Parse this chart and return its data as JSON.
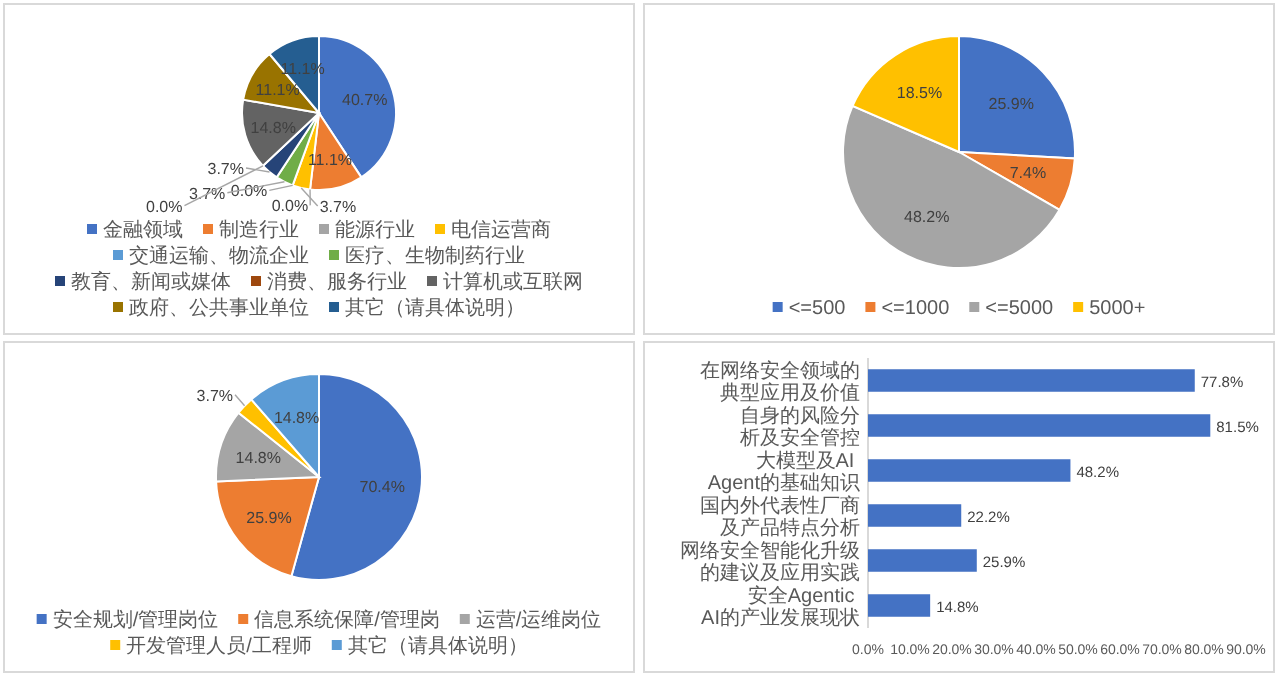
{
  "chart_data": [
    {
      "type": "pie",
      "categories": [
        "金融领域",
        "制造行业",
        "能源行业",
        "电信运营商",
        "交通运输、物流企业",
        "医疗、生物制药行业",
        "教育、新闻或媒体",
        "消费、服务行业",
        "计算机或互联网",
        "政府、公共事业单位",
        "其它（请具体说明）"
      ],
      "values": [
        40.7,
        11.1,
        0.0,
        3.7,
        0.0,
        3.7,
        3.7,
        0.0,
        14.8,
        11.1,
        11.1
      ],
      "value_labels": [
        "40.7%",
        "11.1%",
        "0.0%",
        "3.7%",
        "0.0%",
        "3.7%",
        "3.7%",
        "0.0%",
        "14.8%",
        "11.1%",
        "11.1%"
      ],
      "colors": [
        "#4472c4",
        "#ed7d31",
        "#a5a5a5",
        "#ffc000",
        "#5b9bd5",
        "#70ad47",
        "#264478",
        "#9e480e",
        "#636363",
        "#997300",
        "#255e91"
      ],
      "legend": "bottom"
    },
    {
      "type": "pie",
      "categories": [
        "<=500",
        "<=1000",
        "<=5000",
        "5000+"
      ],
      "values": [
        25.9,
        7.4,
        48.2,
        18.5
      ],
      "value_labels": [
        "25.9%",
        "7.4%",
        "48.2%",
        "18.5%"
      ],
      "colors": [
        "#4472c4",
        "#ed7d31",
        "#a5a5a5",
        "#ffc000"
      ],
      "legend": "bottom"
    },
    {
      "type": "pie",
      "categories": [
        "安全规划/管理岗位",
        "信息系统保障/管理岗",
        "运营/运维岗位",
        "开发管理人员/工程师",
        "其它（请具体说明）"
      ],
      "values": [
        70.4,
        25.9,
        14.8,
        3.7,
        14.8
      ],
      "value_labels": [
        "70.4%",
        "25.9%",
        "14.8%",
        "3.7%",
        "14.8%"
      ],
      "colors": [
        "#4472c4",
        "#ed7d31",
        "#a5a5a5",
        "#ffc000",
        "#5b9bd5"
      ],
      "legend": "bottom"
    },
    {
      "type": "bar",
      "orientation": "horizontal",
      "categories": [
        "在网络安全领域的典型应用及价值",
        "自身的风险分析及安全管控",
        "大模型及AI Agent的基础知识",
        "国内外代表性厂商及产品特点分析",
        "网络安全智能化升级的建议及应用实践",
        "安全Agentic AI的产业发展现状"
      ],
      "values": [
        77.8,
        81.5,
        48.2,
        22.2,
        25.9,
        14.8
      ],
      "value_labels": [
        "77.8%",
        "81.5%",
        "48.2%",
        "22.2%",
        "25.9%",
        "14.8%"
      ],
      "color": "#4472c4",
      "xlim": [
        0,
        90
      ],
      "xticks": [
        {
          "value": 0,
          "label": "0.0%"
        },
        {
          "value": 10,
          "label": "10.0%"
        },
        {
          "value": 20,
          "label": "20.0%"
        },
        {
          "value": 30,
          "label": "30.0%"
        },
        {
          "value": 40,
          "label": "40.0%"
        },
        {
          "value": 50,
          "label": "50.0%"
        },
        {
          "value": 60,
          "label": "60.0%"
        },
        {
          "value": 70,
          "label": "70.0%"
        },
        {
          "value": 80,
          "label": "80.0%"
        },
        {
          "value": 90,
          "label": "90.0%"
        }
      ]
    }
  ]
}
